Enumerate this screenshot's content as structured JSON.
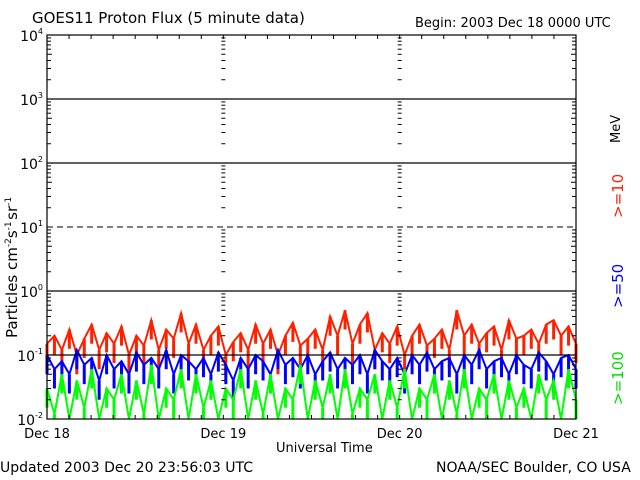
{
  "chart_data": {
    "type": "line",
    "title": "GOES11 Proton Flux (5 minute data)",
    "begin": "Begin: 2003 Dec 18 0000 UTC",
    "ylabel": "Particles cm",
    "ylabel_parts": {
      "base": "Particles cm",
      "e1": "-2",
      "s": "s",
      "e2": "-1",
      "sr": "sr",
      "e3": "-1"
    },
    "xlabel": "Universal Time",
    "yscale": "log",
    "ylim": [
      0.01,
      10000
    ],
    "yticks": [
      {
        "b": "10",
        "e": "4"
      },
      {
        "b": "10",
        "e": "3"
      },
      {
        "b": "10",
        "e": "2"
      },
      {
        "b": "10",
        "e": "1"
      },
      {
        "b": "10",
        "e": "0"
      },
      {
        "b": "10",
        "e": "-1"
      },
      {
        "b": "10",
        "e": "-2"
      }
    ],
    "xlim_hours": [
      0,
      72
    ],
    "xticks": [
      "Dec 18",
      "Dec 19",
      "Dec 20",
      "Dec 21"
    ],
    "threshold_lines": [
      1000,
      100,
      1,
      0.1
    ],
    "dashed_lines": [
      10
    ],
    "series": [
      {
        "name": ">=10",
        "color": "#ff2000",
        "values": [
          0.15,
          0.2,
          0.12,
          0.25,
          0.1,
          0.18,
          0.3,
          0.12,
          0.22,
          0.15,
          0.28,
          0.1,
          0.2,
          0.14,
          0.35,
          0.12,
          0.25,
          0.18,
          0.45,
          0.15,
          0.3,
          0.12,
          0.2,
          0.28,
          0.1,
          0.16,
          0.22,
          0.12,
          0.3,
          0.15,
          0.25,
          0.1,
          0.2,
          0.32,
          0.14,
          0.18,
          0.25,
          0.12,
          0.4,
          0.2,
          0.5,
          0.15,
          0.3,
          0.45,
          0.12,
          0.22,
          0.15,
          0.28,
          0.1,
          0.2,
          0.3,
          0.14,
          0.18,
          0.25,
          0.12,
          0.5,
          0.2,
          0.3,
          0.15,
          0.22,
          0.28,
          0.12,
          0.35,
          0.18,
          0.2,
          0.25,
          0.15,
          0.3,
          0.35,
          0.2,
          0.28,
          0.15
        ]
      },
      {
        "name": ">=50",
        "color": "#0000ff",
        "values": [
          0.1,
          0.06,
          0.08,
          0.05,
          0.12,
          0.07,
          0.09,
          0.04,
          0.1,
          0.06,
          0.08,
          0.05,
          0.11,
          0.07,
          0.09,
          0.06,
          0.12,
          0.05,
          0.1,
          0.08,
          0.06,
          0.09,
          0.05,
          0.11,
          0.07,
          0.04,
          0.09,
          0.06,
          0.1,
          0.08,
          0.05,
          0.12,
          0.07,
          0.09,
          0.06,
          0.1,
          0.05,
          0.08,
          0.11,
          0.06,
          0.09,
          0.07,
          0.1,
          0.05,
          0.12,
          0.08,
          0.06,
          0.09,
          0.05,
          0.1,
          0.07,
          0.11,
          0.06,
          0.08,
          0.09,
          0.05,
          0.1,
          0.07,
          0.12,
          0.06,
          0.08,
          0.09,
          0.05,
          0.1,
          0.07,
          0.06,
          0.11,
          0.08,
          0.05,
          0.09,
          0.1,
          0.06
        ]
      },
      {
        "name": ">=100",
        "color": "#00ff00",
        "values": [
          0.03,
          0.012,
          0.05,
          0.01,
          0.04,
          0.015,
          0.06,
          0.01,
          0.03,
          0.02,
          0.05,
          0.01,
          0.04,
          0.012,
          0.07,
          0.01,
          0.03,
          0.02,
          0.06,
          0.01,
          0.05,
          0.015,
          0.04,
          0.01,
          0.03,
          0.02,
          0.06,
          0.01,
          0.04,
          0.012,
          0.05,
          0.01,
          0.03,
          0.02,
          0.07,
          0.01,
          0.04,
          0.015,
          0.05,
          0.01,
          0.06,
          0.012,
          0.03,
          0.02,
          0.05,
          0.01,
          0.04,
          0.015,
          0.06,
          0.01,
          0.03,
          0.02,
          0.05,
          0.01,
          0.04,
          0.012,
          0.06,
          0.01,
          0.03,
          0.02,
          0.05,
          0.01,
          0.04,
          0.015,
          0.03,
          0.01,
          0.05,
          0.02,
          0.04,
          0.01,
          0.06,
          0.02
        ]
      }
    ],
    "right_labels": {
      "mev": "MeV",
      "ge10": ">=10",
      "ge50": ">=50",
      "ge100": ">=100"
    }
  },
  "footer": {
    "updated": "Updated 2003 Dec 20 23:56:03 UTC",
    "credit": "NOAA/SEC Boulder, CO USA"
  }
}
